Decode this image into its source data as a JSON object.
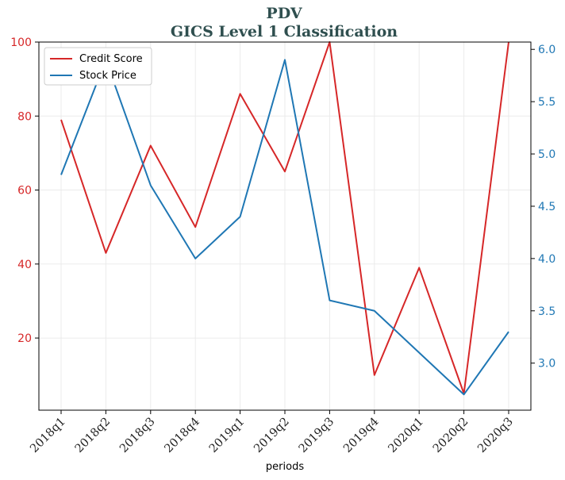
{
  "chart_data": {
    "type": "line",
    "title": "PDV",
    "subtitle": "GICS Level 1 Classification",
    "xlabel": "periods",
    "categories": [
      "2018q1",
      "2018q2",
      "2018q3",
      "2018q4",
      "2019q1",
      "2019q2",
      "2019q3",
      "2019q4",
      "2020q1",
      "2020q2",
      "2020q3"
    ],
    "series": [
      {
        "name": "Credit Score",
        "axis": "left",
        "color": "#d62728",
        "values": [
          79,
          43,
          72,
          50,
          86,
          65,
          100,
          10,
          39,
          5,
          100
        ]
      },
      {
        "name": "Stock Price",
        "axis": "right",
        "color": "#1f77b4",
        "values": [
          4.8,
          5.9,
          4.7,
          4.0,
          4.4,
          5.9,
          3.6,
          3.5,
          3.1,
          2.7,
          3.3
        ]
      }
    ],
    "left_axis": {
      "ylim": [
        0.5,
        100
      ],
      "ticks": [
        20,
        40,
        60,
        80,
        100
      ],
      "color": "#d62728"
    },
    "right_axis": {
      "ylim": [
        2.55,
        6.07
      ],
      "ticks": [
        3.0,
        3.5,
        4.0,
        4.5,
        5.0,
        5.5,
        6.0
      ],
      "tick_labels": [
        "3.0",
        "3.5",
        "4.0",
        "4.5",
        "5.0",
        "5.5",
        "6.0"
      ],
      "color": "#1f77b4"
    },
    "grid": true,
    "legend_position": "top-left"
  }
}
